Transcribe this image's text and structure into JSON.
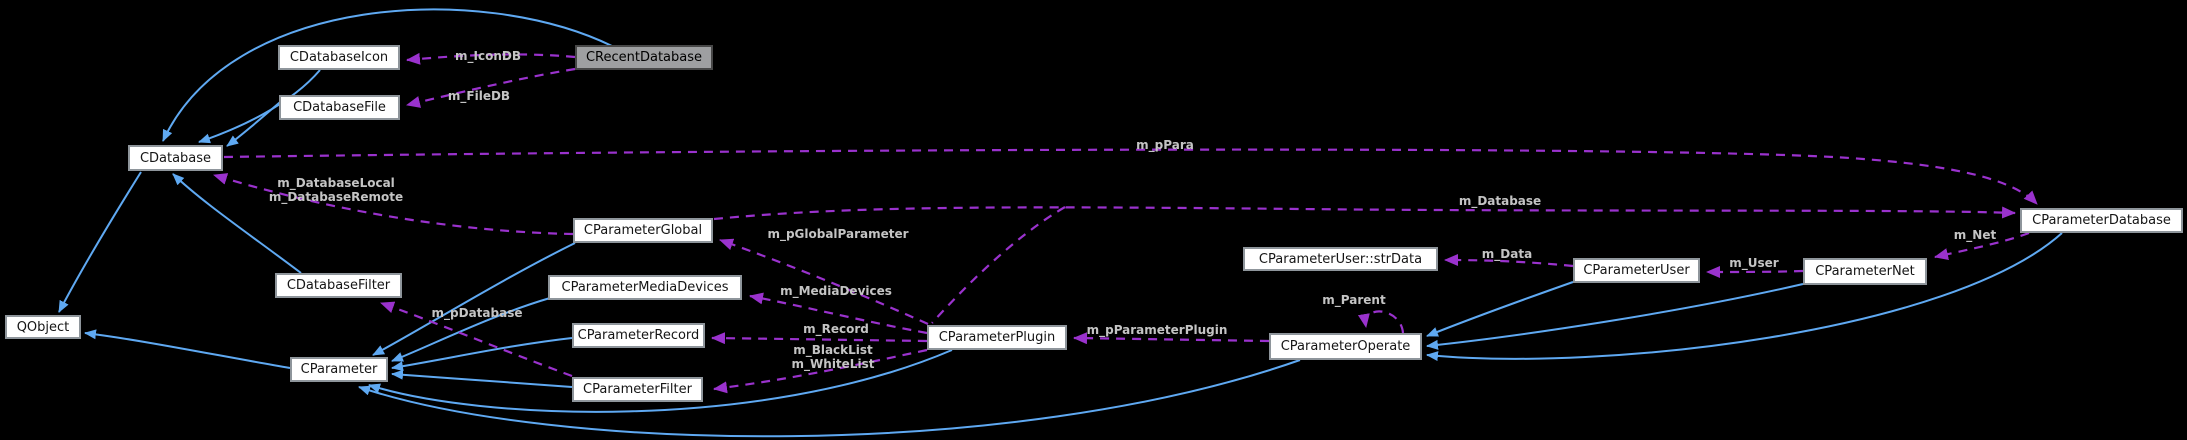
{
  "diagram": {
    "type": "collaboration-graph",
    "colors": {
      "background": "#000000",
      "node_fill": "#ffffff",
      "node_border": "#8e959b",
      "node_text": "#151515",
      "highlight_fill": "#9e9fa1",
      "inheritance_edge": "#5fa9f2",
      "usage_edge": "#9a32cd",
      "edge_label_text": "#c4c4c4"
    },
    "nodes": [
      {
        "id": "QObject",
        "label": "QObject",
        "highlighted": false
      },
      {
        "id": "CDatabase",
        "label": "CDatabase",
        "highlighted": false
      },
      {
        "id": "CDatabaseIcon",
        "label": "CDatabaseIcon",
        "highlighted": false
      },
      {
        "id": "CRecentDatabase",
        "label": "CRecentDatabase",
        "highlighted": true
      },
      {
        "id": "CDatabaseFile",
        "label": "CDatabaseFile",
        "highlighted": false
      },
      {
        "id": "CDatabaseFilter",
        "label": "CDatabaseFilter",
        "highlighted": false
      },
      {
        "id": "CParameter",
        "label": "CParameter",
        "highlighted": false
      },
      {
        "id": "CParameterGlobal",
        "label": "CParameterGlobal",
        "highlighted": false
      },
      {
        "id": "CParameterMediaDevices",
        "label": "CParameterMediaDevices",
        "highlighted": false
      },
      {
        "id": "CParameterRecord",
        "label": "CParameterRecord",
        "highlighted": false
      },
      {
        "id": "CParameterFilter",
        "label": "CParameterFilter",
        "highlighted": false
      },
      {
        "id": "CParameterPlugin",
        "label": "CParameterPlugin",
        "highlighted": false
      },
      {
        "id": "CParameterUser::strData",
        "label": "CParameterUser::strData",
        "highlighted": false
      },
      {
        "id": "CParameterUser",
        "label": "CParameterUser",
        "highlighted": false
      },
      {
        "id": "CParameterNet",
        "label": "CParameterNet",
        "highlighted": false
      },
      {
        "id": "CParameterOperate",
        "label": "CParameterOperate",
        "highlighted": false
      },
      {
        "id": "CParameterDatabase",
        "label": "CParameterDatabase",
        "highlighted": false
      }
    ],
    "edges": [
      {
        "from": "CDatabaseIcon",
        "to": "CDatabase",
        "kind": "inherits",
        "label": ""
      },
      {
        "from": "CDatabaseFile",
        "to": "CDatabase",
        "kind": "inherits",
        "label": ""
      },
      {
        "from": "CRecentDatabase",
        "to": "CDatabase",
        "kind": "inherits",
        "label": ""
      },
      {
        "from": "CDatabaseFilter",
        "to": "CDatabase",
        "kind": "inherits",
        "label": ""
      },
      {
        "from": "CDatabase",
        "to": "QObject",
        "kind": "inherits",
        "label": ""
      },
      {
        "from": "CParameter",
        "to": "QObject",
        "kind": "inherits",
        "label": ""
      },
      {
        "from": "CParameterGlobal",
        "to": "CParameter",
        "kind": "inherits",
        "label": ""
      },
      {
        "from": "CParameterMediaDevices",
        "to": "CParameter",
        "kind": "inherits",
        "label": ""
      },
      {
        "from": "CParameterRecord",
        "to": "CParameter",
        "kind": "inherits",
        "label": ""
      },
      {
        "from": "CParameterFilter",
        "to": "CParameter",
        "kind": "inherits",
        "label": ""
      },
      {
        "from": "CParameterPlugin",
        "to": "CParameter",
        "kind": "inherits",
        "label": ""
      },
      {
        "from": "CParameterOperate",
        "to": "CParameter",
        "kind": "inherits",
        "label": ""
      },
      {
        "from": "CParameterUser",
        "to": "CParameterOperate",
        "kind": "inherits",
        "label": ""
      },
      {
        "from": "CParameterNet",
        "to": "CParameterOperate",
        "kind": "inherits",
        "label": ""
      },
      {
        "from": "CParameterDatabase",
        "to": "CParameterOperate",
        "kind": "inherits",
        "label": ""
      },
      {
        "from": "CRecentDatabase",
        "to": "CDatabaseIcon",
        "kind": "uses",
        "label": "m_IconDB"
      },
      {
        "from": "CRecentDatabase",
        "to": "CDatabaseFile",
        "kind": "uses",
        "label": "m_FileDB"
      },
      {
        "from": "CDatabase",
        "to": "CParameterDatabase",
        "kind": "uses",
        "label": "m_pPara"
      },
      {
        "from": "CParameterGlobal",
        "to": "CDatabase",
        "kind": "uses",
        "label": "m_DatabaseLocal\nm_DatabaseRemote"
      },
      {
        "from": "CParameterGlobal",
        "to": "CParameterDatabase",
        "kind": "uses",
        "label": "m_Database"
      },
      {
        "from": "CParameterPlugin",
        "to": "CParameterGlobal",
        "kind": "uses",
        "label": "m_pGlobalParameter"
      },
      {
        "from": "CParameterPlugin",
        "to": "CParameterMediaDevices",
        "kind": "uses",
        "label": "m_MediaDevices"
      },
      {
        "from": "CParameterPlugin",
        "to": "CParameterRecord",
        "kind": "uses",
        "label": "m_Record"
      },
      {
        "from": "CParameterPlugin",
        "to": "CParameterFilter",
        "kind": "uses",
        "label": "m_BlackList\nm_WhiteList"
      },
      {
        "from": "CParameterFilter",
        "to": "CDatabaseFilter",
        "kind": "uses",
        "label": "m_pDatabase"
      },
      {
        "from": "CParameterOperate",
        "to": "CParameterPlugin",
        "kind": "uses",
        "label": "m_pParameterPlugin"
      },
      {
        "from": "CParameterUser",
        "to": "CParameterUser::strData",
        "kind": "uses",
        "label": "m_Data"
      },
      {
        "from": "CParameterNet",
        "to": "CParameterUser",
        "kind": "uses",
        "label": "m_User"
      },
      {
        "from": "CParameterDatabase",
        "to": "CParameterNet",
        "kind": "uses",
        "label": "m_Net"
      },
      {
        "from": "CParameterOperate",
        "to": "CParameterOperate",
        "kind": "uses",
        "label": "m_Parent"
      }
    ]
  }
}
